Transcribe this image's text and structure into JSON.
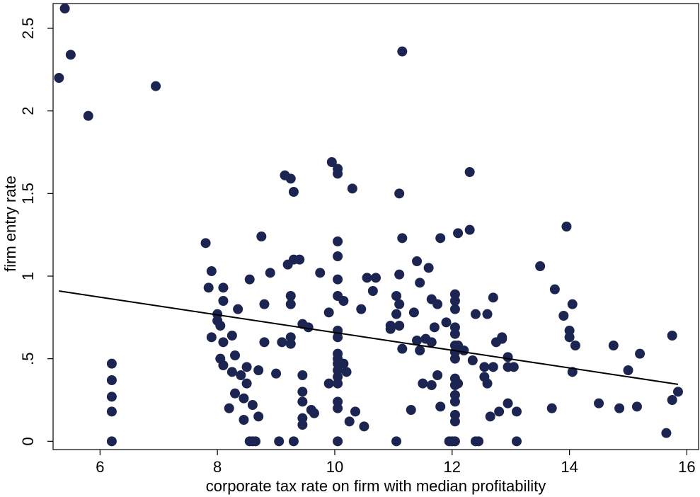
{
  "chart_data": {
    "type": "scatter",
    "title": "",
    "xlabel": "corporate tax rate on firm with median profitability",
    "ylabel": "firm entry rate",
    "xlim": [
      5.2,
      16.2
    ],
    "ylim": [
      -0.05,
      2.65
    ],
    "xticks": [
      6,
      8,
      10,
      12,
      14,
      16
    ],
    "xtick_labels": [
      "6",
      "8",
      "10",
      "12",
      "14",
      "16"
    ],
    "yticks": [
      0,
      0.5,
      1,
      1.5,
      2,
      2.5
    ],
    "ytick_labels": [
      "0",
      ".5",
      "1",
      "1.5",
      "2",
      "2.5"
    ],
    "grid": false,
    "legend": "none",
    "marker_color": "#1c2551",
    "line_color": "#000000",
    "fit_line": {
      "x": [
        5.3,
        15.85
      ],
      "y": [
        0.91,
        0.345
      ]
    },
    "points": [
      [
        5.3,
        2.2
      ],
      [
        5.4,
        2.62
      ],
      [
        5.5,
        2.34
      ],
      [
        5.8,
        1.97
      ],
      [
        6.95,
        2.15
      ],
      [
        6.2,
        0.47
      ],
      [
        6.2,
        0.37
      ],
      [
        6.2,
        0.27
      ],
      [
        6.2,
        0.18
      ],
      [
        6.2,
        0.0
      ],
      [
        7.8,
        1.2
      ],
      [
        7.85,
        0.93
      ],
      [
        7.9,
        0.63
      ],
      [
        7.9,
        1.03
      ],
      [
        8.0,
        0.77
      ],
      [
        8.0,
        0.73
      ],
      [
        8.05,
        0.7
      ],
      [
        8.05,
        0.5
      ],
      [
        8.1,
        0.93
      ],
      [
        8.1,
        0.85
      ],
      [
        8.1,
        0.6
      ],
      [
        8.1,
        0.46
      ],
      [
        8.2,
        0.2
      ],
      [
        8.25,
        0.64
      ],
      [
        8.25,
        0.42
      ],
      [
        8.3,
        0.52
      ],
      [
        8.3,
        0.29
      ],
      [
        8.35,
        0.8
      ],
      [
        8.4,
        0.4
      ],
      [
        8.45,
        0.26
      ],
      [
        8.45,
        0.13
      ],
      [
        8.5,
        0.35
      ],
      [
        8.5,
        0.45
      ],
      [
        8.55,
        0.98
      ],
      [
        8.55,
        0.0
      ],
      [
        8.6,
        0.0
      ],
      [
        8.65,
        0.0
      ],
      [
        8.6,
        0.22
      ],
      [
        8.7,
        0.43
      ],
      [
        8.7,
        0.15
      ],
      [
        8.75,
        1.24
      ],
      [
        8.8,
        0.83
      ],
      [
        8.8,
        0.6
      ],
      [
        8.9,
        1.02
      ],
      [
        9.0,
        0.41
      ],
      [
        9.05,
        0.0
      ],
      [
        9.1,
        0.6
      ],
      [
        9.15,
        1.61
      ],
      [
        9.2,
        1.07
      ],
      [
        9.25,
        1.59
      ],
      [
        9.25,
        0.88
      ],
      [
        9.25,
        0.83
      ],
      [
        9.25,
        0.63
      ],
      [
        9.25,
        0.59
      ],
      [
        9.3,
        1.51
      ],
      [
        9.3,
        1.1
      ],
      [
        9.3,
        0.0
      ],
      [
        9.4,
        1.1
      ],
      [
        9.45,
        0.71
      ],
      [
        9.45,
        0.4
      ],
      [
        9.45,
        0.3
      ],
      [
        9.45,
        0.24
      ],
      [
        9.45,
        0.14
      ],
      [
        9.45,
        0.1
      ],
      [
        9.55,
        0.69
      ],
      [
        9.6,
        0.19
      ],
      [
        9.65,
        0.17
      ],
      [
        9.75,
        1.02
      ],
      [
        9.9,
        0.78
      ],
      [
        9.9,
        0.35
      ],
      [
        9.95,
        1.69
      ],
      [
        10.05,
        1.65
      ],
      [
        10.05,
        1.62
      ],
      [
        10.05,
        1.21
      ],
      [
        10.05,
        1.12
      ],
      [
        10.05,
        0.98
      ],
      [
        10.05,
        0.88
      ],
      [
        10.05,
        0.67
      ],
      [
        10.05,
        0.63
      ],
      [
        10.05,
        0.53
      ],
      [
        10.05,
        0.5
      ],
      [
        10.05,
        0.47
      ],
      [
        10.05,
        0.43
      ],
      [
        10.05,
        0.39
      ],
      [
        10.05,
        0.35
      ],
      [
        10.05,
        0.24
      ],
      [
        10.05,
        0.2
      ],
      [
        10.05,
        0.0
      ],
      [
        10.15,
        0.85
      ],
      [
        10.15,
        0.47
      ],
      [
        10.2,
        0.42
      ],
      [
        10.25,
        0.12
      ],
      [
        10.3,
        1.53
      ],
      [
        10.35,
        0.18
      ],
      [
        10.45,
        0.8
      ],
      [
        10.5,
        0.09
      ],
      [
        10.55,
        0.99
      ],
      [
        10.65,
        0.91
      ],
      [
        10.7,
        0.99
      ],
      [
        10.95,
        0.7
      ],
      [
        10.95,
        0.68
      ],
      [
        11.05,
        0.88
      ],
      [
        11.05,
        0.77
      ],
      [
        11.05,
        0.0
      ],
      [
        11.1,
        1.5
      ],
      [
        11.1,
        1.01
      ],
      [
        11.1,
        0.83
      ],
      [
        11.1,
        0.7
      ],
      [
        11.15,
        2.36
      ],
      [
        11.15,
        1.23
      ],
      [
        11.15,
        0.56
      ],
      [
        11.3,
        0.19
      ],
      [
        11.35,
        0.78
      ],
      [
        11.4,
        1.09
      ],
      [
        11.4,
        0.61
      ],
      [
        11.45,
        0.96
      ],
      [
        11.45,
        0.55
      ],
      [
        11.5,
        0.35
      ],
      [
        11.55,
        0.62
      ],
      [
        11.6,
        1.05
      ],
      [
        11.65,
        0.86
      ],
      [
        11.65,
        0.6
      ],
      [
        11.65,
        0.34
      ],
      [
        11.7,
        0.69
      ],
      [
        11.75,
        0.83
      ],
      [
        11.75,
        0.4
      ],
      [
        11.8,
        1.23
      ],
      [
        11.8,
        0.21
      ],
      [
        11.9,
        0.72
      ],
      [
        11.95,
        0.0
      ],
      [
        12.0,
        0.0
      ],
      [
        12.05,
        0.89
      ],
      [
        12.05,
        0.85
      ],
      [
        12.05,
        0.8
      ],
      [
        12.05,
        0.69
      ],
      [
        12.05,
        0.65
      ],
      [
        12.05,
        0.58
      ],
      [
        12.05,
        0.54
      ],
      [
        12.05,
        0.5
      ],
      [
        12.05,
        0.38
      ],
      [
        12.05,
        0.34
      ],
      [
        12.05,
        0.28
      ],
      [
        12.05,
        0.24
      ],
      [
        12.05,
        0.16
      ],
      [
        12.05,
        0.12
      ],
      [
        12.05,
        0.0
      ],
      [
        12.1,
        0.35
      ],
      [
        12.1,
        0.58
      ],
      [
        12.1,
        1.26
      ],
      [
        12.2,
        0.55
      ],
      [
        12.3,
        1.63
      ],
      [
        12.3,
        1.28
      ],
      [
        12.35,
        0.49
      ],
      [
        12.4,
        0.77
      ],
      [
        12.4,
        0.0
      ],
      [
        12.45,
        0.0
      ],
      [
        12.55,
        0.45
      ],
      [
        12.55,
        0.39
      ],
      [
        12.6,
        0.35
      ],
      [
        12.6,
        0.77
      ],
      [
        12.65,
        0.15
      ],
      [
        12.7,
        0.87
      ],
      [
        12.7,
        0.45
      ],
      [
        12.75,
        0.6
      ],
      [
        12.8,
        0.18
      ],
      [
        12.85,
        0.63
      ],
      [
        12.85,
        0.62
      ],
      [
        12.95,
        0.51
      ],
      [
        12.95,
        0.45
      ],
      [
        12.95,
        0.23
      ],
      [
        13.05,
        0.45
      ],
      [
        13.1,
        0.18
      ],
      [
        13.1,
        0.0
      ],
      [
        13.5,
        1.06
      ],
      [
        13.7,
        0.2
      ],
      [
        13.75,
        0.92
      ],
      [
        13.9,
        0.76
      ],
      [
        13.95,
        1.3
      ],
      [
        14.0,
        0.67
      ],
      [
        14.0,
        0.63
      ],
      [
        14.05,
        0.83
      ],
      [
        14.05,
        0.42
      ],
      [
        14.1,
        0.58
      ],
      [
        14.5,
        0.23
      ],
      [
        14.75,
        0.58
      ],
      [
        14.85,
        0.2
      ],
      [
        15.0,
        0.43
      ],
      [
        15.15,
        0.21
      ],
      [
        15.2,
        0.53
      ],
      [
        15.65,
        0.05
      ],
      [
        15.75,
        0.64
      ],
      [
        15.75,
        0.25
      ],
      [
        15.85,
        0.3
      ]
    ]
  }
}
